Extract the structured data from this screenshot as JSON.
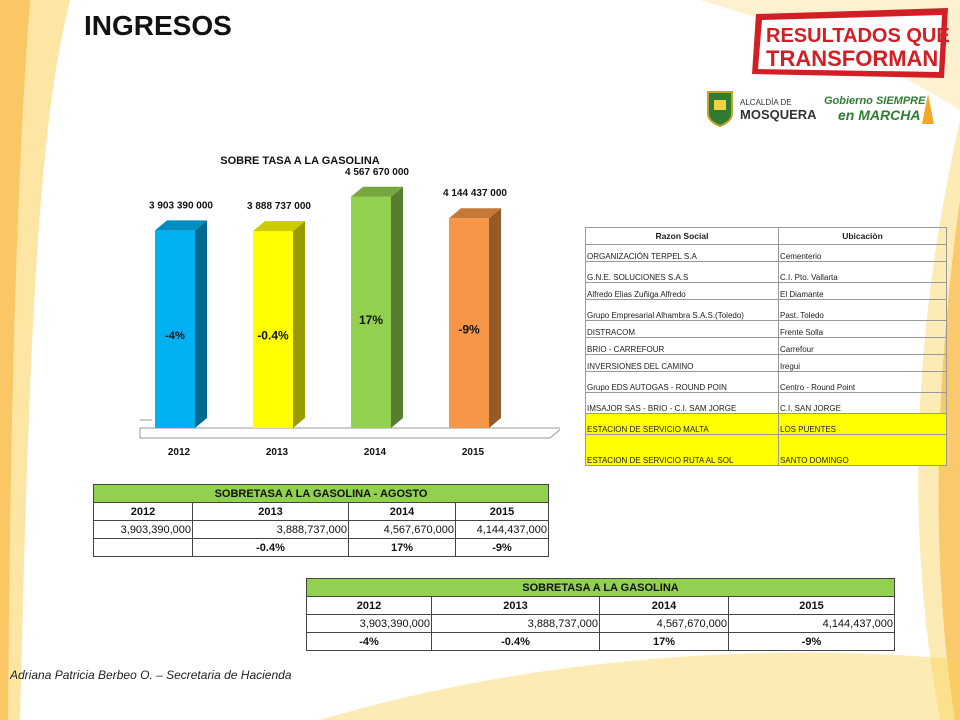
{
  "title": "INGRESOS",
  "branding": {
    "slogan_line1": "RESULTADOS QUE",
    "slogan_line2": "TRANSFORMAN",
    "logo1_line1": "ALCALDÍA DE",
    "logo1_line2": "MOSQUERA",
    "logo2_line1": "Gobierno SIEMPRE",
    "logo2_line2": "en MARCHA"
  },
  "colors": {
    "header_green": "#92d050",
    "highlight_yellow": "#ffff00",
    "bar_2012": "#00b0f0",
    "bar_2013": "#ffff00",
    "bar_2014": "#92d050",
    "bar_2015": "#f79646",
    "accent_orange": "#f7a823"
  },
  "chart_data": {
    "type": "bar",
    "title": "SOBRE TASA A LA GASOLINA",
    "categories": [
      "2012",
      "2013",
      "2014",
      "2015"
    ],
    "values": [
      3903390000,
      3888737000,
      4567670000,
      4144437000
    ],
    "value_labels": [
      "3 903 390 000",
      "3 888 737 000",
      "4 567 670 000",
      "4 144 437 000"
    ],
    "bar_text": [
      "-4%",
      "-0.4%",
      "17%",
      "-9%"
    ],
    "ylim": [
      0,
      4800000000
    ],
    "grid": false,
    "legend": "none"
  },
  "firms_table": {
    "headers": [
      "Razon Social",
      "Ubicaciòn"
    ],
    "rows": [
      [
        "ORGANIZACIÓN TERPEL S.A",
        "Cementerio"
      ],
      [
        "G.N.E. SOLUCIONES S.A.S",
        "C.I. Pto. Vallarta"
      ],
      [
        "Alfredo Elias Zuñiga Alfredo",
        "El Diamante"
      ],
      [
        "Grupo Empresarial Alhambra S.A.S.(Toledo)",
        "Past. Toledo"
      ],
      [
        "DISTRACOM",
        "Frente Solla"
      ],
      [
        "BRIO - CARREFOUR",
        "Carrefour"
      ],
      [
        "INVERSIONES DEL CAMINO",
        "Iregui"
      ],
      [
        "Grupo EDS AUTOGAS - ROUND POIN",
        "Centro - Round Point"
      ],
      [
        "IMSAJOR SAS - BRIO - C.I. SAM JORGE",
        "C.I. SAN JORGE"
      ],
      [
        "ESTACION DE SERVICIO MALTA",
        "LOS PUENTES"
      ],
      [
        "ESTACION DE SERVICIO RUTA AL SOL",
        "SANTO DOMINGO"
      ]
    ]
  },
  "table_agosto": {
    "title": "SOBRETASA A LA GASOLINA - AGOSTO",
    "years": [
      "2012",
      "2013",
      "2014",
      "2015"
    ],
    "values": [
      "3,903,390,000",
      "3,888,737,000",
      "4,567,670,000",
      "4,144,437,000"
    ],
    "pcts": [
      "",
      "-0.4%",
      "17%",
      "-9%"
    ]
  },
  "table_total": {
    "title": "SOBRETASA A LA GASOLINA",
    "years": [
      "2012",
      "2013",
      "2014",
      "2015"
    ],
    "values": [
      "3,903,390,000",
      "3,888,737,000",
      "4,567,670,000",
      "4,144,437,000"
    ],
    "pcts": [
      "-4%",
      "-0.4%",
      "17%",
      "-9%"
    ]
  },
  "footer": "Adriana Patricia Berbeo O. – Secretaria de Hacienda"
}
